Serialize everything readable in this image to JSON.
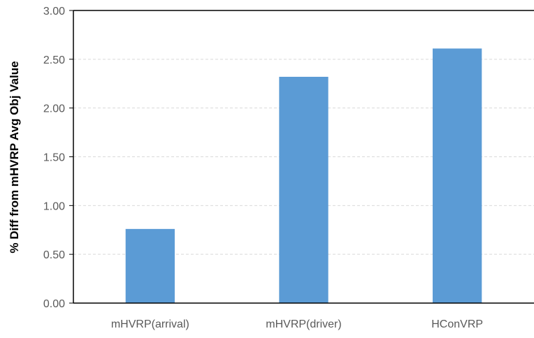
{
  "chart_data": {
    "type": "bar",
    "categories": [
      "mHVRP(arrival)",
      "mHVRP(driver)",
      "HConVRP"
    ],
    "values": [
      0.76,
      2.32,
      2.61
    ],
    "title": "",
    "xlabel": "",
    "ylabel": "% Diff from mHVRP Avg Obj Value",
    "ylim": [
      0,
      3
    ],
    "yticks": [
      "0.00",
      "0.50",
      "1.00",
      "1.50",
      "2.00",
      "2.50",
      "3.00"
    ],
    "grid": true,
    "legend": "none",
    "colors": {
      "bar": "#5b9bd5",
      "grid": "#d9d9d9",
      "axis": "#000000",
      "text": "#595959"
    }
  }
}
